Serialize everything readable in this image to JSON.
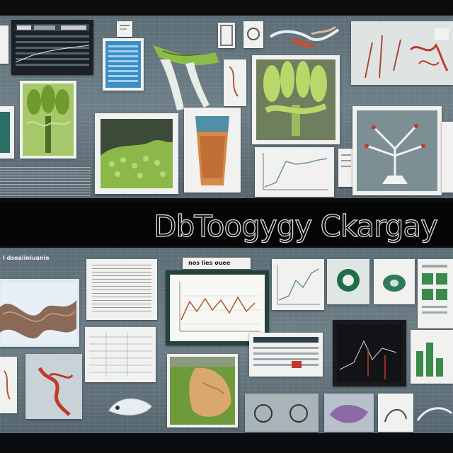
{
  "title": "DbToogygy Ckargay",
  "panels": {
    "card_header_1": "nos lies ouee",
    "side_header": "l dsoaiiniuanie"
  },
  "colors": {
    "background": "#0b0c0d",
    "collage_band": "#66777f",
    "card_paper": "#f1f2ef",
    "plant_green": "#7fae3c",
    "accent_red": "#c0392b",
    "title_fill": "#0a0a0a",
    "title_outline": "#e9e9e9"
  },
  "icons": [
    "plant-illustration",
    "tree-diagram",
    "line-chart",
    "bar-chart",
    "brain-scan",
    "anatomy-sketch"
  ]
}
